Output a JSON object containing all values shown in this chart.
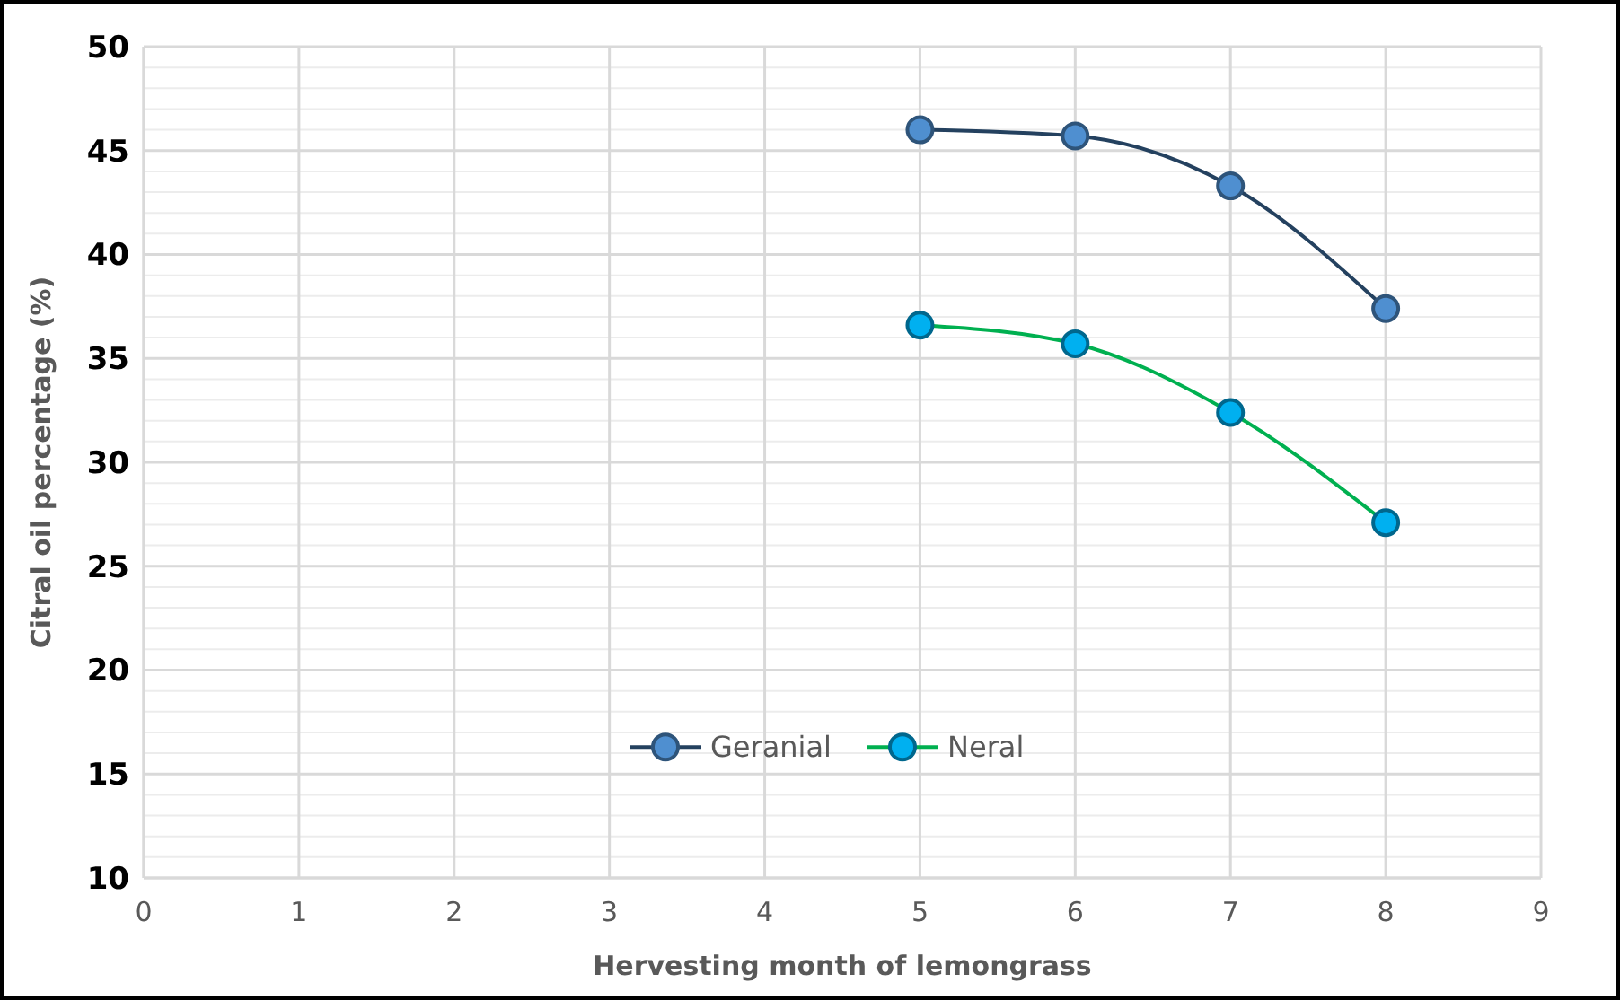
{
  "chart_data": {
    "type": "line",
    "xlabel": "Hervesting month of lemongrass",
    "ylabel": "Citral oil percentage (%)",
    "x": [
      5,
      6,
      7,
      8
    ],
    "series": [
      {
        "name": "Geranial",
        "color": "#4f8fd0",
        "values": [
          46.0,
          45.7,
          43.3,
          37.4
        ]
      },
      {
        "name": "Neral",
        "color": "#00b0f0",
        "values": [
          36.6,
          35.7,
          32.4,
          27.1
        ]
      }
    ],
    "xlim": [
      0,
      9
    ],
    "xticks": [
      0,
      1,
      2,
      3,
      4,
      5,
      6,
      7,
      8,
      9
    ],
    "ylim": [
      10,
      50
    ],
    "yticks": [
      10,
      {
        "value": 11,
        "label": null
      },
      {
        "value": 12,
        "label": null
      },
      {
        "value": 13,
        "label": null
      },
      {
        "value": 14,
        "label": null
      },
      15,
      {
        "value": 16,
        "label": null
      },
      {
        "value": 17,
        "label": null
      },
      {
        "value": 18,
        "label": null
      },
      {
        "value": 19,
        "label": null
      },
      20,
      {
        "value": 21,
        "label": null
      },
      {
        "value": 22,
        "label": null
      },
      {
        "value": 23,
        "label": null
      },
      {
        "value": 24,
        "label": null
      },
      25,
      {
        "value": 26,
        "label": null
      },
      {
        "value": 27,
        "label": null
      },
      {
        "value": 28,
        "label": null
      },
      {
        "value": 29,
        "label": null
      },
      30,
      {
        "value": 31,
        "label": null
      },
      {
        "value": 32,
        "label": null
      },
      {
        "value": 33,
        "label": null
      },
      {
        "value": 34,
        "label": null
      },
      35,
      {
        "value": 36,
        "label": null
      },
      {
        "value": 37,
        "label": null
      },
      {
        "value": 38,
        "label": null
      },
      {
        "value": 39,
        "label": null
      },
      40,
      {
        "value": 41,
        "label": null
      },
      {
        "value": 42,
        "label": null
      },
      {
        "value": 43,
        "label": null
      },
      {
        "value": 44,
        "label": null
      },
      45,
      {
        "value": 46,
        "label": null
      },
      {
        "value": 47,
        "label": null
      },
      {
        "value": 48,
        "label": null
      },
      {
        "value": 49,
        "label": null
      },
      50
    ],
    "grid": true,
    "legend": "bottom",
    "marker": "circle",
    "line_style": "solid"
  }
}
